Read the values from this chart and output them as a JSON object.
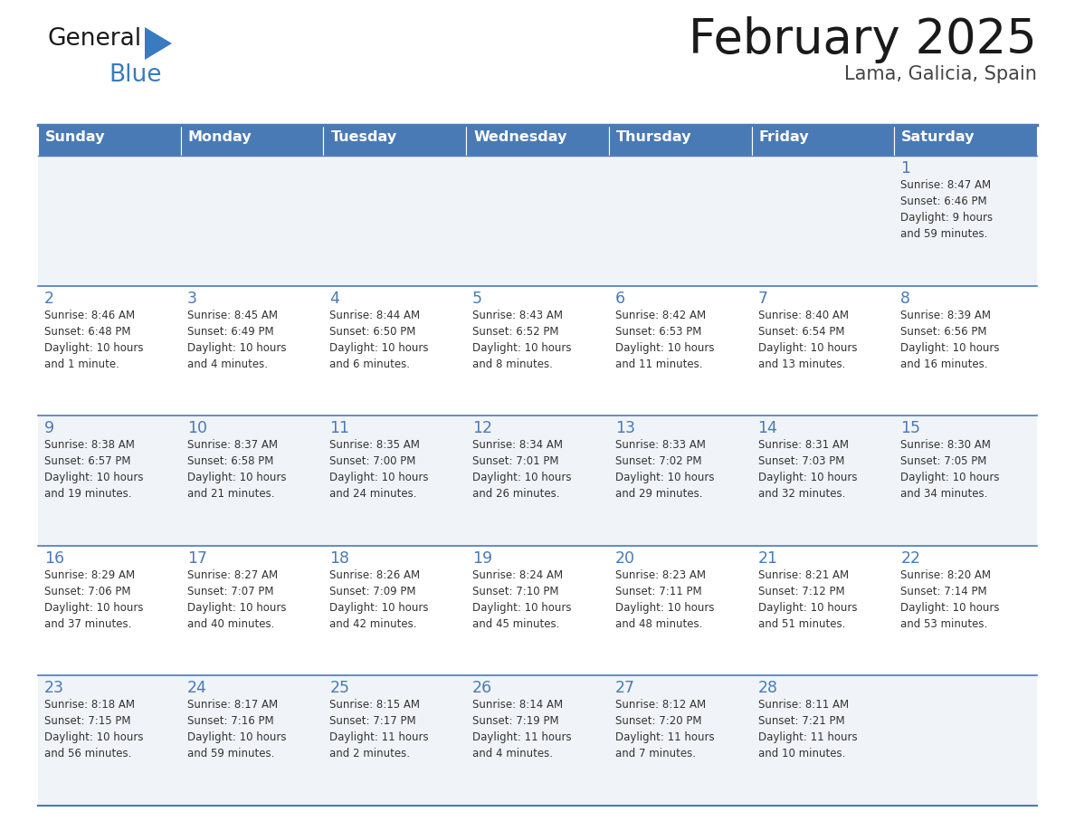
{
  "title": "February 2025",
  "subtitle": "Lama, Galicia, Spain",
  "header_color": "#4a7ab5",
  "header_text_color": "#ffffff",
  "cell_bg_even": "#f0f4f8",
  "cell_bg_odd": "#ffffff",
  "border_color": "#4a7ab5",
  "day_number_color": "#4a7ab5",
  "text_color": "#333333",
  "logo_general_color": "#1a1a1a",
  "logo_blue_color": "#3a7abf",
  "logo_triangle_color": "#3a7abf",
  "days_of_week": [
    "Sunday",
    "Monday",
    "Tuesday",
    "Wednesday",
    "Thursday",
    "Friday",
    "Saturday"
  ],
  "calendar": [
    [
      null,
      null,
      null,
      null,
      null,
      null,
      1
    ],
    [
      2,
      3,
      4,
      5,
      6,
      7,
      8
    ],
    [
      9,
      10,
      11,
      12,
      13,
      14,
      15
    ],
    [
      16,
      17,
      18,
      19,
      20,
      21,
      22
    ],
    [
      23,
      24,
      25,
      26,
      27,
      28,
      null
    ]
  ],
  "day_data": {
    "1": [
      "Sunrise: 8:47 AM",
      "Sunset: 6:46 PM",
      "Daylight: 9 hours",
      "and 59 minutes."
    ],
    "2": [
      "Sunrise: 8:46 AM",
      "Sunset: 6:48 PM",
      "Daylight: 10 hours",
      "and 1 minute."
    ],
    "3": [
      "Sunrise: 8:45 AM",
      "Sunset: 6:49 PM",
      "Daylight: 10 hours",
      "and 4 minutes."
    ],
    "4": [
      "Sunrise: 8:44 AM",
      "Sunset: 6:50 PM",
      "Daylight: 10 hours",
      "and 6 minutes."
    ],
    "5": [
      "Sunrise: 8:43 AM",
      "Sunset: 6:52 PM",
      "Daylight: 10 hours",
      "and 8 minutes."
    ],
    "6": [
      "Sunrise: 8:42 AM",
      "Sunset: 6:53 PM",
      "Daylight: 10 hours",
      "and 11 minutes."
    ],
    "7": [
      "Sunrise: 8:40 AM",
      "Sunset: 6:54 PM",
      "Daylight: 10 hours",
      "and 13 minutes."
    ],
    "8": [
      "Sunrise: 8:39 AM",
      "Sunset: 6:56 PM",
      "Daylight: 10 hours",
      "and 16 minutes."
    ],
    "9": [
      "Sunrise: 8:38 AM",
      "Sunset: 6:57 PM",
      "Daylight: 10 hours",
      "and 19 minutes."
    ],
    "10": [
      "Sunrise: 8:37 AM",
      "Sunset: 6:58 PM",
      "Daylight: 10 hours",
      "and 21 minutes."
    ],
    "11": [
      "Sunrise: 8:35 AM",
      "Sunset: 7:00 PM",
      "Daylight: 10 hours",
      "and 24 minutes."
    ],
    "12": [
      "Sunrise: 8:34 AM",
      "Sunset: 7:01 PM",
      "Daylight: 10 hours",
      "and 26 minutes."
    ],
    "13": [
      "Sunrise: 8:33 AM",
      "Sunset: 7:02 PM",
      "Daylight: 10 hours",
      "and 29 minutes."
    ],
    "14": [
      "Sunrise: 8:31 AM",
      "Sunset: 7:03 PM",
      "Daylight: 10 hours",
      "and 32 minutes."
    ],
    "15": [
      "Sunrise: 8:30 AM",
      "Sunset: 7:05 PM",
      "Daylight: 10 hours",
      "and 34 minutes."
    ],
    "16": [
      "Sunrise: 8:29 AM",
      "Sunset: 7:06 PM",
      "Daylight: 10 hours",
      "and 37 minutes."
    ],
    "17": [
      "Sunrise: 8:27 AM",
      "Sunset: 7:07 PM",
      "Daylight: 10 hours",
      "and 40 minutes."
    ],
    "18": [
      "Sunrise: 8:26 AM",
      "Sunset: 7:09 PM",
      "Daylight: 10 hours",
      "and 42 minutes."
    ],
    "19": [
      "Sunrise: 8:24 AM",
      "Sunset: 7:10 PM",
      "Daylight: 10 hours",
      "and 45 minutes."
    ],
    "20": [
      "Sunrise: 8:23 AM",
      "Sunset: 7:11 PM",
      "Daylight: 10 hours",
      "and 48 minutes."
    ],
    "21": [
      "Sunrise: 8:21 AM",
      "Sunset: 7:12 PM",
      "Daylight: 10 hours",
      "and 51 minutes."
    ],
    "22": [
      "Sunrise: 8:20 AM",
      "Sunset: 7:14 PM",
      "Daylight: 10 hours",
      "and 53 minutes."
    ],
    "23": [
      "Sunrise: 8:18 AM",
      "Sunset: 7:15 PM",
      "Daylight: 10 hours",
      "and 56 minutes."
    ],
    "24": [
      "Sunrise: 8:17 AM",
      "Sunset: 7:16 PM",
      "Daylight: 10 hours",
      "and 59 minutes."
    ],
    "25": [
      "Sunrise: 8:15 AM",
      "Sunset: 7:17 PM",
      "Daylight: 11 hours",
      "and 2 minutes."
    ],
    "26": [
      "Sunrise: 8:14 AM",
      "Sunset: 7:19 PM",
      "Daylight: 11 hours",
      "and 4 minutes."
    ],
    "27": [
      "Sunrise: 8:12 AM",
      "Sunset: 7:20 PM",
      "Daylight: 11 hours",
      "and 7 minutes."
    ],
    "28": [
      "Sunrise: 8:11 AM",
      "Sunset: 7:21 PM",
      "Daylight: 11 hours",
      "and 10 minutes."
    ]
  },
  "fig_width": 11.88,
  "fig_height": 9.18,
  "dpi": 100
}
